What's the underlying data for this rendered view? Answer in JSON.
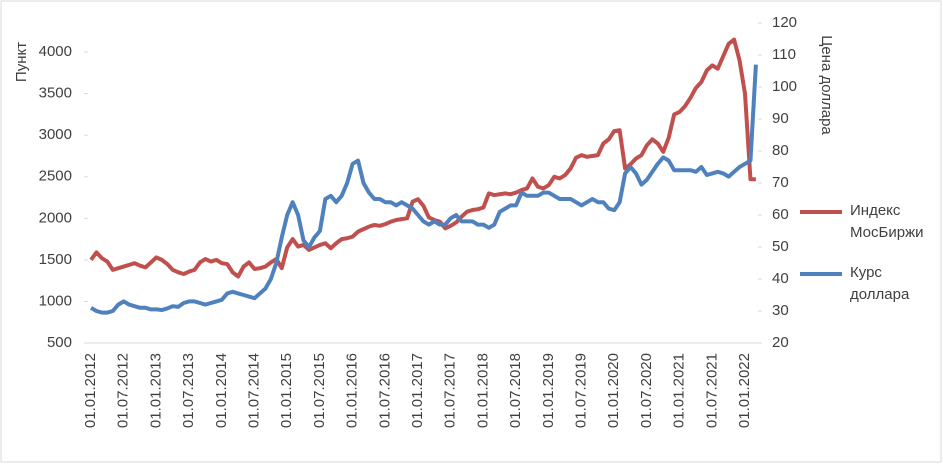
{
  "chart_data": {
    "type": "line",
    "y_label": "Пункт",
    "y2_label": "Цена доллара",
    "categories": [
      "01.01.2012",
      null,
      null,
      null,
      null,
      null,
      "01.07.2012",
      null,
      null,
      null,
      null,
      null,
      "01.01.2013",
      null,
      null,
      null,
      null,
      null,
      "01.07.2013",
      null,
      null,
      null,
      null,
      null,
      "01.01.2014",
      null,
      null,
      null,
      null,
      null,
      "01.07.2014",
      null,
      null,
      null,
      null,
      null,
      "01.01.2015",
      null,
      null,
      null,
      null,
      null,
      "01.07.2015",
      null,
      null,
      null,
      null,
      null,
      "01.01.2016",
      null,
      null,
      null,
      null,
      null,
      "01.07.2016",
      null,
      null,
      null,
      null,
      null,
      "01.01.2017",
      null,
      null,
      null,
      null,
      null,
      "01.07.2017",
      null,
      null,
      null,
      null,
      null,
      "01.01.2018",
      null,
      null,
      null,
      null,
      null,
      "01.07.2018",
      null,
      null,
      null,
      null,
      null,
      "01.01.2019",
      null,
      null,
      null,
      null,
      null,
      "01.07.2019",
      null,
      null,
      null,
      null,
      null,
      "01.01.2020",
      null,
      null,
      null,
      null,
      null,
      "01.07.2020",
      null,
      null,
      null,
      null,
      null,
      "01.01.2021",
      null,
      null,
      null,
      null,
      null,
      "01.07.2021",
      null,
      null,
      null,
      null,
      null,
      "01.01.2022",
      null,
      null
    ],
    "series": [
      {
        "name": "Индекс МосБиржи",
        "color": "#c0504d",
        "axis": "y",
        "values": [
          1500,
          1590,
          1520,
          1480,
          1380,
          1400,
          1420,
          1440,
          1460,
          1430,
          1410,
          1470,
          1530,
          1500,
          1450,
          1380,
          1350,
          1330,
          1360,
          1380,
          1470,
          1510,
          1480,
          1500,
          1460,
          1450,
          1350,
          1300,
          1420,
          1470,
          1390,
          1400,
          1420,
          1470,
          1510,
          1400,
          1650,
          1750,
          1660,
          1680,
          1620,
          1650,
          1680,
          1700,
          1640,
          1700,
          1750,
          1760,
          1780,
          1840,
          1870,
          1900,
          1920,
          1910,
          1930,
          1960,
          1980,
          1990,
          2000,
          2200,
          2230,
          2150,
          2010,
          1980,
          1960,
          1880,
          1910,
          1950,
          2020,
          2080,
          2100,
          2110,
          2130,
          2300,
          2280,
          2290,
          2300,
          2290,
          2310,
          2340,
          2360,
          2480,
          2380,
          2360,
          2400,
          2500,
          2480,
          2520,
          2600,
          2730,
          2760,
          2740,
          2750,
          2760,
          2900,
          2950,
          3050,
          3060,
          2600,
          2650,
          2720,
          2760,
          2880,
          2950,
          2900,
          2800,
          2970,
          3250,
          3280,
          3350,
          3450,
          3570,
          3640,
          3780,
          3840,
          3800,
          3950,
          4100,
          4150,
          3900,
          3500,
          2470,
          2470
        ]
      },
      {
        "name": "Курс доллара",
        "color": "#4f81bd",
        "axis": "y2",
        "values": [
          31,
          30,
          29.5,
          29.5,
          30,
          32,
          33,
          32,
          31.5,
          31,
          31,
          30.5,
          30.5,
          30.3,
          30.8,
          31.5,
          31.3,
          32.5,
          33,
          33,
          32.5,
          32,
          32.5,
          33,
          33.5,
          35.5,
          36,
          35.5,
          35,
          34.5,
          34,
          35.5,
          37,
          40,
          45,
          53,
          60,
          64,
          60,
          52,
          50,
          53,
          55,
          65,
          66,
          64,
          66,
          70,
          76,
          77,
          70,
          67,
          65,
          65,
          64,
          64,
          63,
          64,
          63,
          62,
          60,
          58,
          57,
          58,
          57,
          57,
          59,
          60,
          58,
          58,
          58,
          57,
          57,
          56,
          57,
          61,
          62,
          63,
          63,
          67,
          66,
          66,
          66,
          67,
          67,
          66,
          65,
          65,
          65,
          64,
          63,
          64,
          65,
          64,
          64,
          62,
          61.5,
          64,
          73,
          75,
          73,
          69.5,
          71,
          73.5,
          76,
          78,
          77,
          74,
          74,
          74,
          74,
          73.5,
          75,
          72.5,
          73,
          73.5,
          73,
          72,
          73.5,
          75,
          76,
          77,
          107
        ]
      }
    ],
    "ylim": [
      500,
      4350
    ],
    "yticks": [
      500,
      1000,
      1500,
      2000,
      2500,
      3000,
      3500,
      4000
    ],
    "y2lim": [
      20,
      120
    ],
    "y2ticks": [
      20,
      30,
      40,
      50,
      60,
      70,
      80,
      90,
      100,
      110,
      120
    ],
    "legend": "right"
  }
}
